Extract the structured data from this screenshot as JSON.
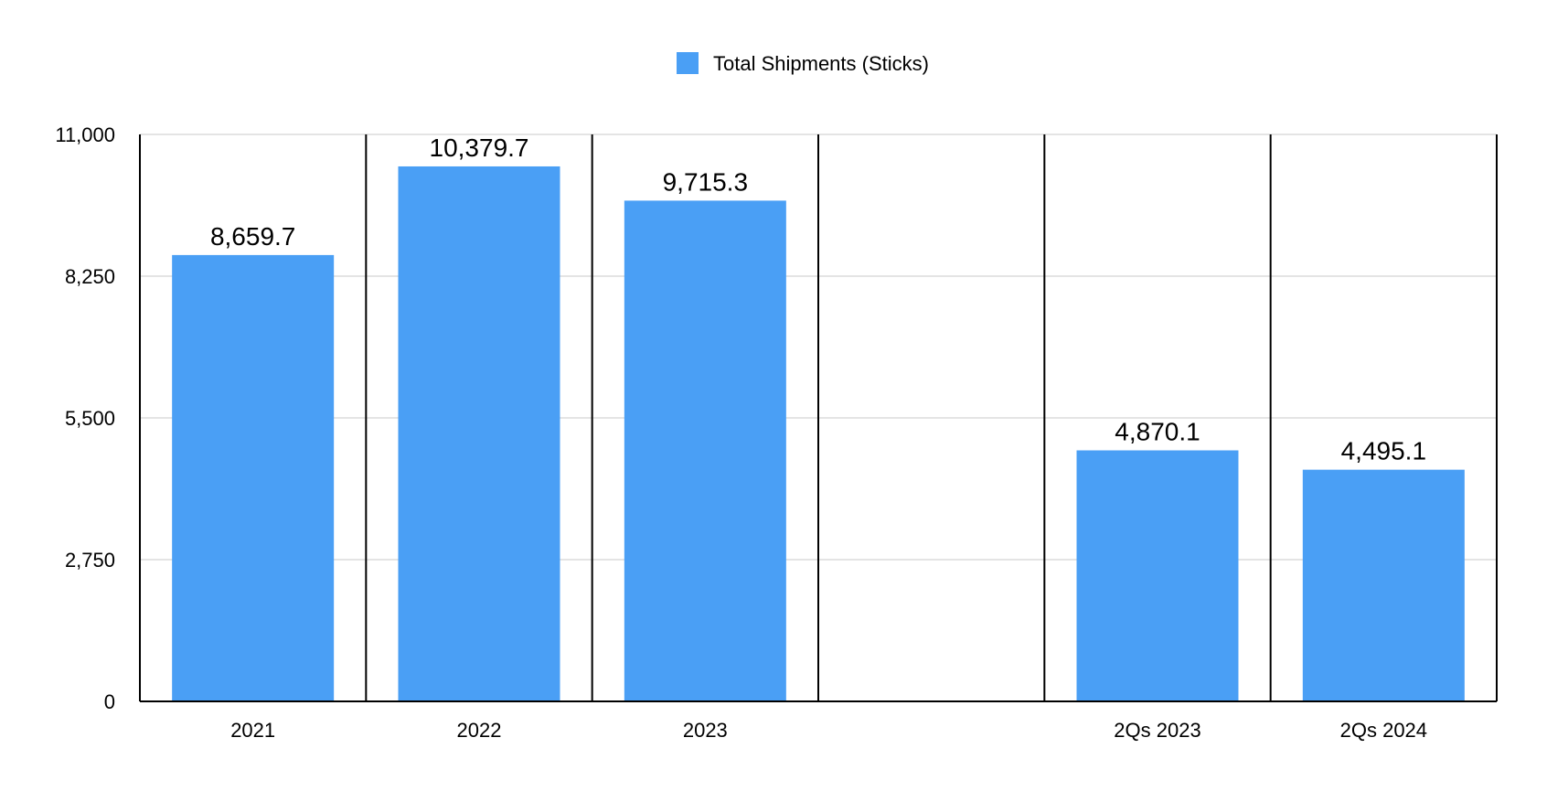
{
  "chart_data": {
    "type": "bar",
    "title": "",
    "xlabel": "",
    "ylabel": "",
    "categories": [
      "2021",
      "2022",
      "2023",
      "",
      "2Qs 2023",
      "2Qs 2024"
    ],
    "series": [
      {
        "name": "Total Shipments (Sticks)",
        "values": [
          8659.7,
          10379.7,
          9715.3,
          null,
          4870.1,
          4495.1
        ],
        "data_labels": [
          "8,659.7",
          "10,379.7",
          "9,715.3",
          "",
          "4,870.1",
          "4,495.1"
        ],
        "color": "#4A9FF5"
      }
    ],
    "ylim": [
      0,
      11000
    ],
    "yticks": [
      0,
      2750,
      5500,
      8250,
      11000
    ],
    "ytick_labels": [
      "0",
      "2,750",
      "5,500",
      "8,250",
      "11,000"
    ],
    "grid": true,
    "legend": "top-center",
    "category_separators": true
  }
}
